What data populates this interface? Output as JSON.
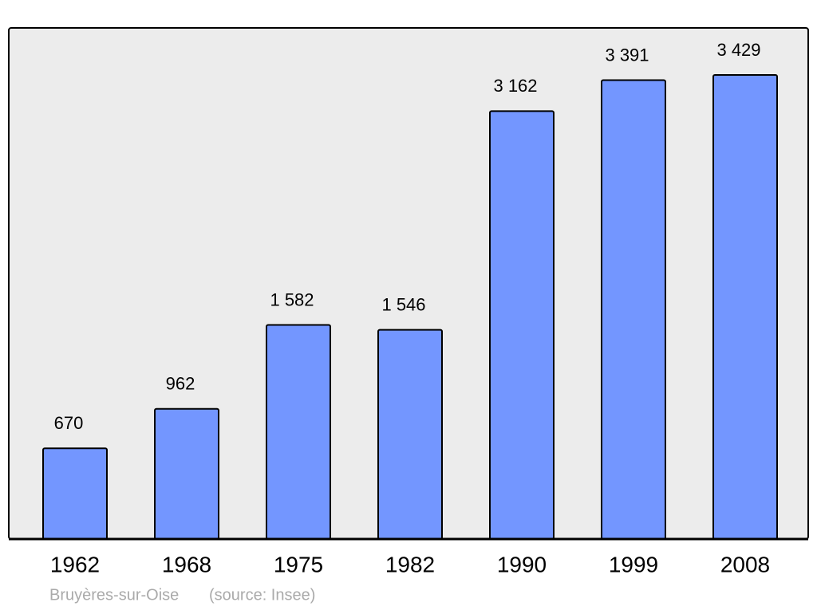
{
  "chart_data": {
    "type": "bar",
    "categories": [
      "1962",
      "1968",
      "1975",
      "1982",
      "1990",
      "1999",
      "2008"
    ],
    "values": [
      670,
      962,
      1582,
      1546,
      3162,
      3391,
      3429
    ],
    "value_labels": [
      "670",
      "962",
      "1 582",
      "1 546",
      "3 162",
      "3 391",
      "3 429"
    ],
    "color": "#7396ff",
    "caption": "Bruyères-sur-Oise",
    "source": "(source: Insee)"
  }
}
